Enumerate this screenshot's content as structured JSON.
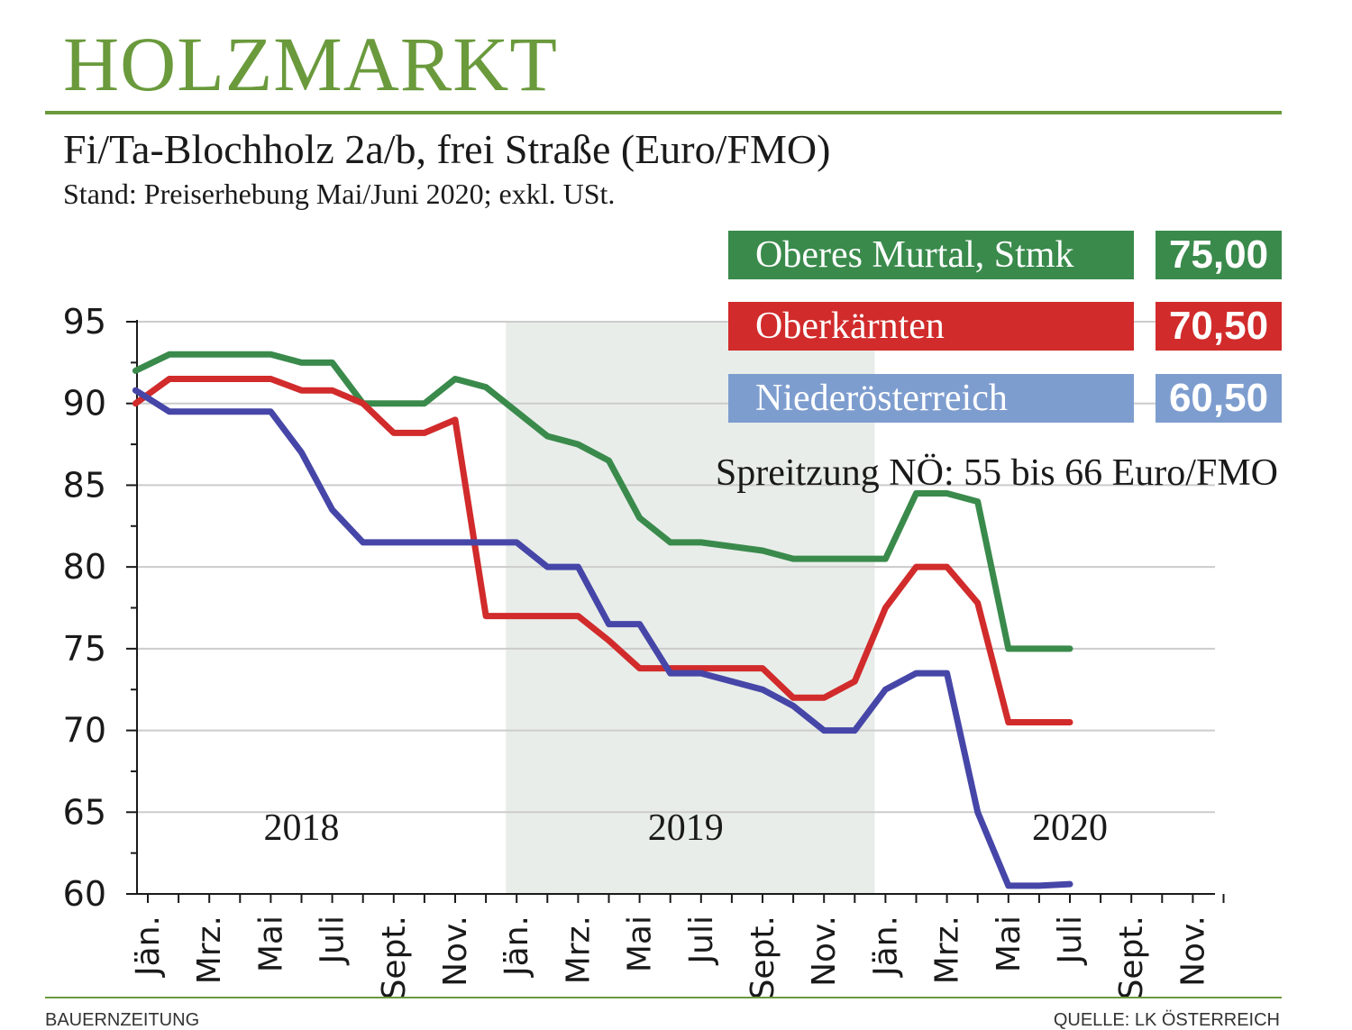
{
  "header": {
    "title": "HOLZMARKT",
    "subtitle": "Fi/Ta-Blochholz 2a/b, frei Straße (Euro/FMO)",
    "note": "Stand: Preiserhebung Mai/Juni 2020; exkl. USt."
  },
  "legend": [
    {
      "label": "Oberes Murtal, Stmk",
      "value": "75,00",
      "color": "#3a8a4c"
    },
    {
      "label": "Oberkärnten",
      "value": "70,50",
      "color": "#d12b2b"
    },
    {
      "label": "Niederösterreich",
      "value": "60,50",
      "color": "#7e9dcf"
    }
  ],
  "footer": {
    "left": "BAUERNZEITUNG",
    "right": "QUELLE: LK ÖSTERREICH"
  },
  "colors": {
    "accent": "#6a9a3c",
    "shade": "#e8ede9",
    "grid": "#cccccc"
  },
  "chart_data": {
    "type": "line",
    "title": "Fi/Ta-Blochholz 2a/b, frei Straße (Euro/FMO)",
    "ylabel": "Euro/FMO",
    "ylim": [
      60,
      95
    ],
    "yticks": [
      60,
      65,
      70,
      75,
      80,
      85,
      90,
      95
    ],
    "month_count": 36,
    "month_start_index": 0,
    "xtick_labels": [
      {
        "month": 0,
        "label": "Jän."
      },
      {
        "month": 2,
        "label": "Mrz."
      },
      {
        "month": 4,
        "label": "Mai"
      },
      {
        "month": 6,
        "label": "Juli"
      },
      {
        "month": 8,
        "label": "Sept."
      },
      {
        "month": 10,
        "label": "Nov."
      },
      {
        "month": 12,
        "label": "Jän."
      },
      {
        "month": 14,
        "label": "Mrz."
      },
      {
        "month": 16,
        "label": "Mai"
      },
      {
        "month": 18,
        "label": "Juli"
      },
      {
        "month": 20,
        "label": "Sept."
      },
      {
        "month": 22,
        "label": "Nov."
      },
      {
        "month": 24,
        "label": "Jän."
      },
      {
        "month": 26,
        "label": "Mrz."
      },
      {
        "month": 28,
        "label": "Mai"
      },
      {
        "month": 30,
        "label": "Juli"
      },
      {
        "month": 32,
        "label": "Sept."
      },
      {
        "month": 34,
        "label": "Nov."
      }
    ],
    "years": [
      {
        "label": "2018",
        "center_month": 5
      },
      {
        "label": "2019",
        "center_month": 17.5
      },
      {
        "label": "2020",
        "center_month": 30
      }
    ],
    "shaded_range": [
      12,
      24
    ],
    "annotation": "Spreitzung NÖ: 55 bis 66 Euro/FMO",
    "series": [
      {
        "name": "Oberes Murtal, Stmk",
        "color": "#3a8a4c",
        "points": [
          [
            -0.4,
            92
          ],
          [
            0.7,
            93
          ],
          [
            4,
            93
          ],
          [
            5,
            92.5
          ],
          [
            6,
            92.5
          ],
          [
            7,
            90
          ],
          [
            9,
            90
          ],
          [
            10,
            91.5
          ],
          [
            11,
            91
          ],
          [
            13,
            88
          ],
          [
            14,
            87.5
          ],
          [
            15,
            86.5
          ],
          [
            16,
            83
          ],
          [
            17,
            81.5
          ],
          [
            18,
            81.5
          ],
          [
            20,
            81
          ],
          [
            21,
            80.5
          ],
          [
            24,
            80.5
          ],
          [
            25,
            84.5
          ],
          [
            26,
            84.5
          ],
          [
            27,
            84
          ],
          [
            28,
            75
          ],
          [
            30,
            75
          ]
        ]
      },
      {
        "name": "Oberkärnten",
        "color": "#d12b2b",
        "points": [
          [
            -0.4,
            90
          ],
          [
            0.7,
            91.5
          ],
          [
            4,
            91.5
          ],
          [
            5,
            90.8
          ],
          [
            6,
            90.8
          ],
          [
            7,
            90
          ],
          [
            8,
            88.2
          ],
          [
            9,
            88.2
          ],
          [
            10,
            89
          ],
          [
            11,
            77
          ],
          [
            14,
            77
          ],
          [
            15,
            75.5
          ],
          [
            16,
            73.8
          ],
          [
            17,
            73.8
          ],
          [
            20,
            73.8
          ],
          [
            21,
            72
          ],
          [
            22,
            72
          ],
          [
            23,
            73
          ],
          [
            24,
            77.5
          ],
          [
            25,
            80
          ],
          [
            26,
            80
          ],
          [
            27,
            77.8
          ],
          [
            28,
            70.5
          ],
          [
            30,
            70.5
          ]
        ]
      },
      {
        "name": "Niederösterreich",
        "color": "#4646a8",
        "points": [
          [
            -0.4,
            90.8
          ],
          [
            0.7,
            89.5
          ],
          [
            4,
            89.5
          ],
          [
            5,
            87
          ],
          [
            6,
            83.5
          ],
          [
            7,
            81.5
          ],
          [
            12,
            81.5
          ],
          [
            13,
            80
          ],
          [
            14,
            80
          ],
          [
            15,
            76.5
          ],
          [
            16,
            76.5
          ],
          [
            17,
            73.5
          ],
          [
            18,
            73.5
          ],
          [
            20,
            72.5
          ],
          [
            21,
            71.5
          ],
          [
            22,
            70
          ],
          [
            23,
            70
          ],
          [
            24,
            72.5
          ],
          [
            25,
            73.5
          ],
          [
            26,
            73.5
          ],
          [
            27,
            65
          ],
          [
            28,
            60.5
          ],
          [
            29,
            60.5
          ],
          [
            30,
            60.6
          ]
        ]
      }
    ]
  }
}
